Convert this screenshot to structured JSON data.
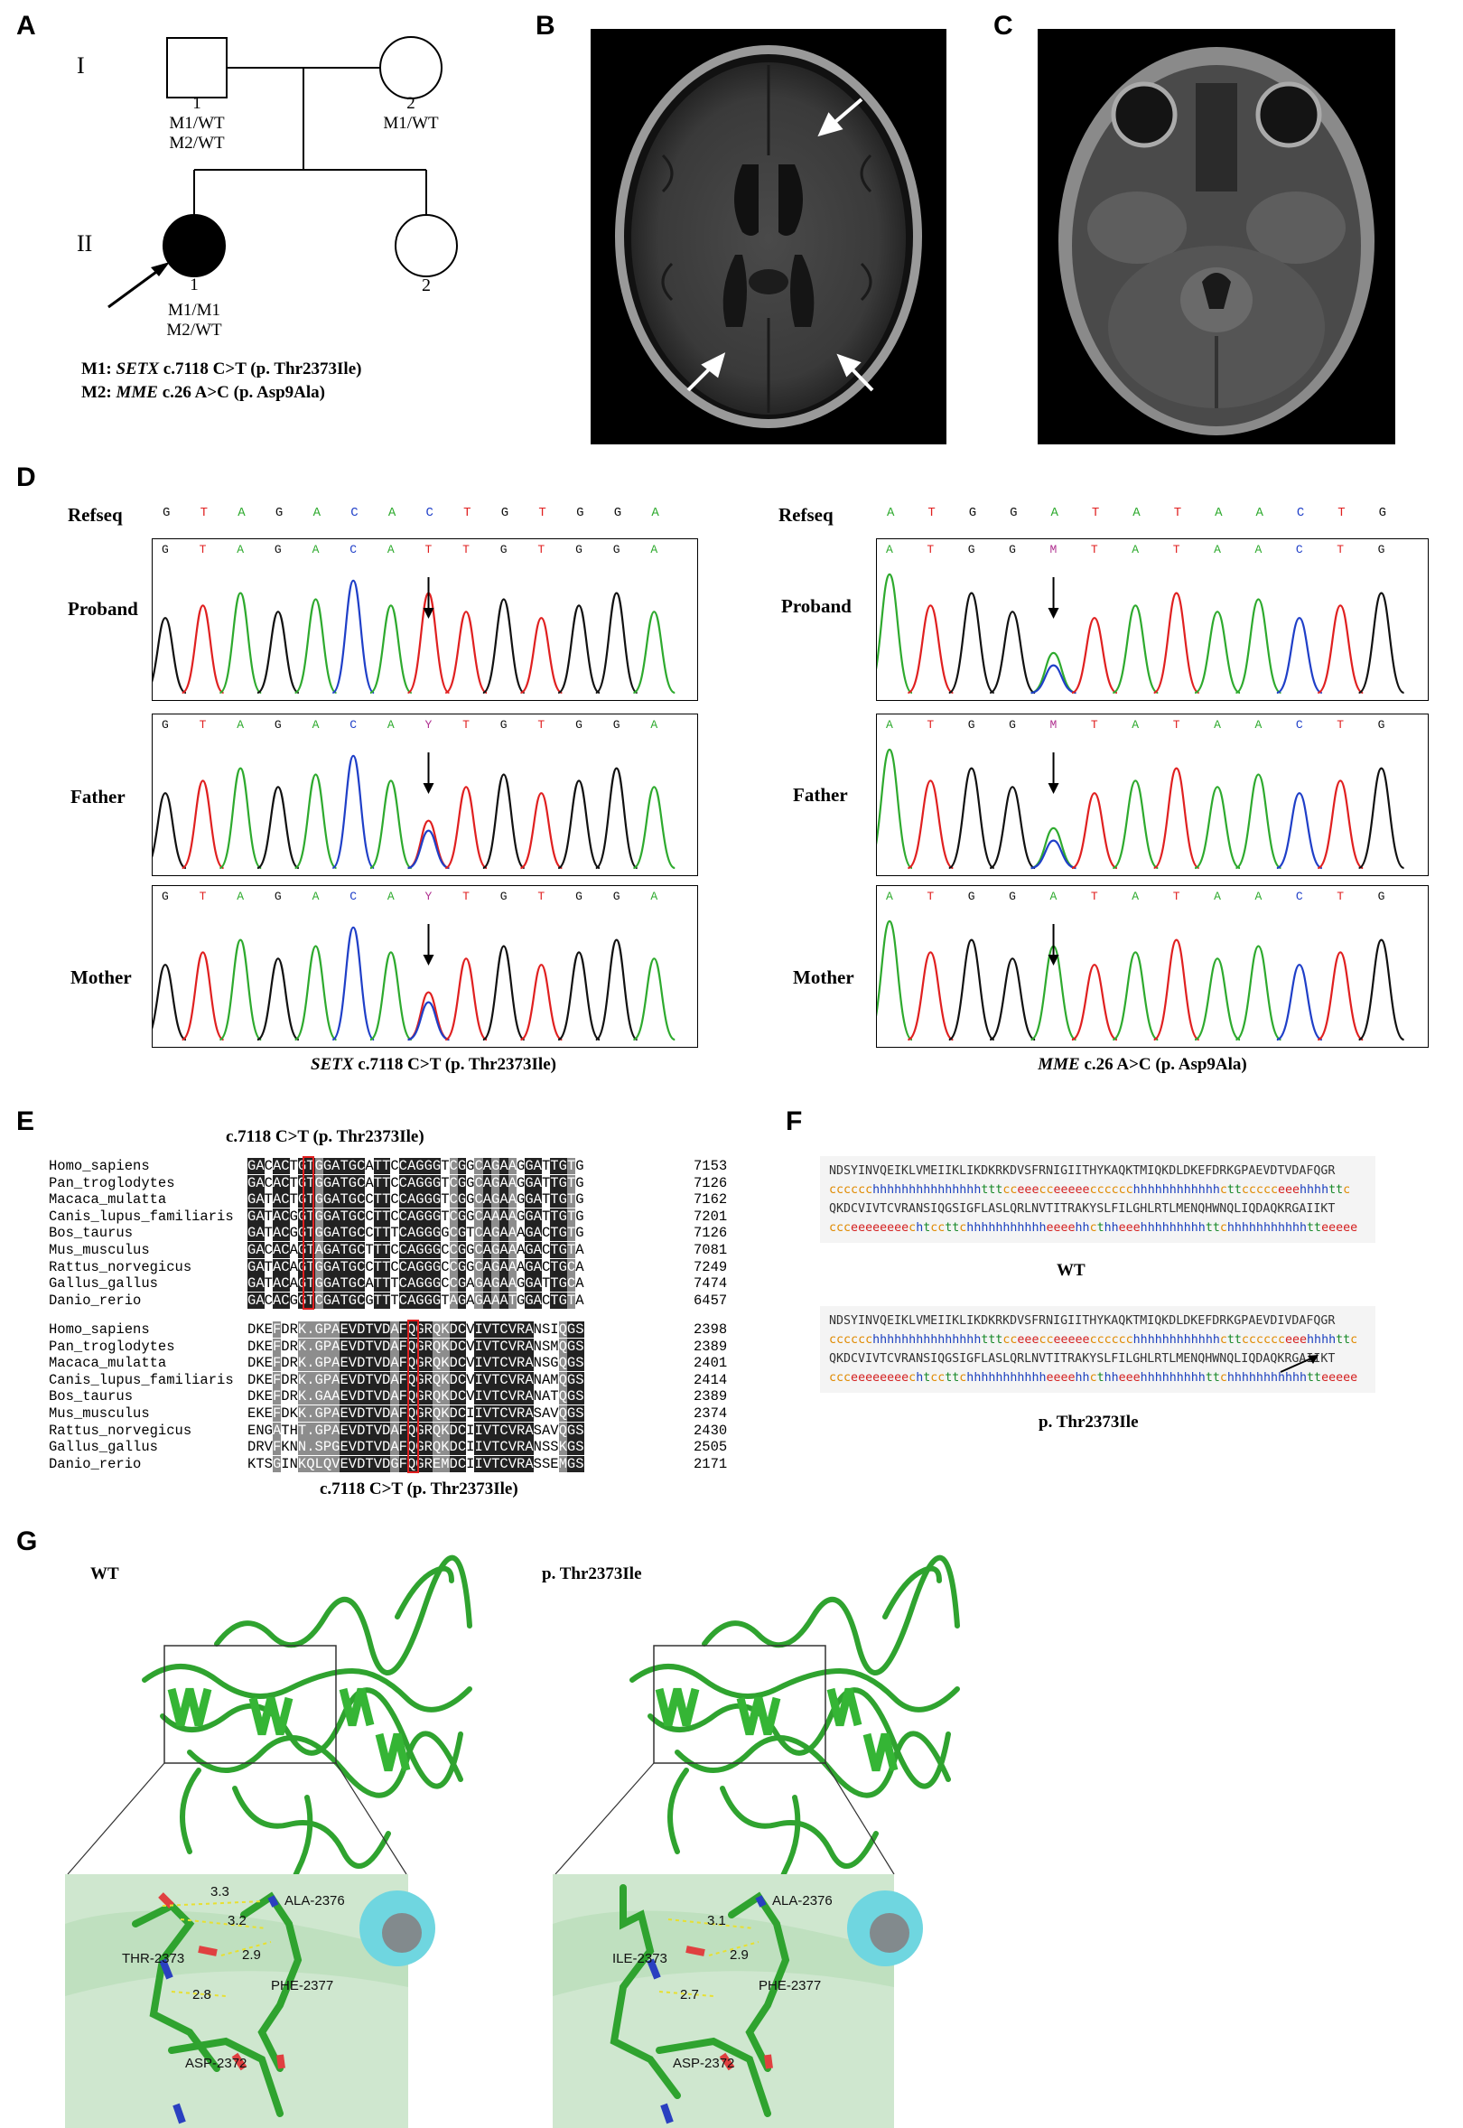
{
  "panels": {
    "A": "A",
    "B": "B",
    "C": "C",
    "D": "D",
    "E": "E",
    "F": "F",
    "G": "G"
  },
  "pedigree": {
    "gen1": "I",
    "gen2": "II",
    "ind_I1": {
      "num": "1",
      "g1": "M1/WT",
      "g2": "M2/WT"
    },
    "ind_I2": {
      "num": "2",
      "g1": "M1/WT"
    },
    "ind_II1": {
      "num": "1",
      "g1": "M1/M1",
      "g2": "M2/WT"
    },
    "ind_II2": {
      "num": "2"
    },
    "legend_m1": {
      "key": "M1:",
      "gene": "SETX",
      "rest": " c.7118 C>T (p. Thr2373Ile)"
    },
    "legend_m2": {
      "key": "M2:",
      "gene": "MME",
      "rest": "  c.26 A>C (p. Asp9Ala)"
    }
  },
  "chromatograms": {
    "row_labels": {
      "ref": "Refseq",
      "proband": "Proband",
      "father": "Father",
      "mother": "Mother"
    },
    "left": {
      "refseq": [
        "G",
        "T",
        "A",
        "G",
        "A",
        "C",
        "A",
        "C",
        "T",
        "G",
        "T",
        "G",
        "G",
        "A"
      ],
      "proband": [
        "G",
        "T",
        "A",
        "G",
        "A",
        "C",
        "A",
        "T",
        "T",
        "G",
        "T",
        "G",
        "G",
        "A"
      ],
      "father": [
        "G",
        "T",
        "A",
        "G",
        "A",
        "C",
        "A",
        "Y",
        "T",
        "G",
        "T",
        "G",
        "G",
        "A"
      ],
      "mother": [
        "G",
        "T",
        "A",
        "G",
        "A",
        "C",
        "A",
        "Y",
        "T",
        "G",
        "T",
        "G",
        "G",
        "A"
      ],
      "caption_gene": "SETX",
      "caption_rest": " c.7118 C>T (p. Thr2373Ile)"
    },
    "right": {
      "refseq": [
        "A",
        "T",
        "G",
        "G",
        "A",
        "T",
        "A",
        "T",
        "A",
        "A",
        "C",
        "T",
        "G"
      ],
      "proband": [
        "A",
        "T",
        "G",
        "G",
        "M",
        "T",
        "A",
        "T",
        "A",
        "A",
        "C",
        "T",
        "G"
      ],
      "father": [
        "A",
        "T",
        "G",
        "G",
        "M",
        "T",
        "A",
        "T",
        "A",
        "A",
        "C",
        "T",
        "G"
      ],
      "mother": [
        "A",
        "T",
        "G",
        "G",
        "A",
        "T",
        "A",
        "T",
        "A",
        "A",
        "C",
        "T",
        "G"
      ],
      "caption_gene": "MME",
      "caption_rest": " c.26 A>C (p. Asp9Ala)"
    },
    "base_colors": {
      "A": "#2eaa2e",
      "T": "#e02020",
      "G": "#111111",
      "C": "#1f3fc8",
      "Y": "#b03090",
      "M": "#b03090"
    }
  },
  "alignment": {
    "title_top": "c.7118 C>T (p. Thr2373Ile)",
    "title_bottom": "c.7118 C>T (p. Thr2373Ile)",
    "species": [
      "Homo_sapiens",
      "Pan_troglodytes",
      "Macaca_mulatta",
      "Canis_lupus_familiaris",
      "Bos_taurus",
      "Mus_musculus",
      "Rattus_norvegicus",
      "Gallus_gallus",
      "Danio_rerio"
    ],
    "nucleotide": [
      {
        "seq": "GACACTGTGGATGCATTCCAGGGTCGGCAGAAGGATTGTG",
        "pos": "7153"
      },
      {
        "seq": "GACACTGTGGATGCATTCCAGGGTCGGCAGAAGGATTGTG",
        "pos": "7126"
      },
      {
        "seq": "GATACTGTGGATGCCTTCCAGGGTCGGCAGAAGGATTGTG",
        "pos": "7162"
      },
      {
        "seq": "GATACGGTGGATGCCTTCCAGGGTCGGCAAAAGGATTGTG",
        "pos": "7201"
      },
      {
        "seq": "GATACGGTGGATGCCTTTCAGGGGCGTCAGAAAGACTGTG",
        "pos": "7126"
      },
      {
        "seq": "GACACAGTAGATGCTTTCCAGGGCCGGCAGAAAGACTGTA",
        "pos": "7081"
      },
      {
        "seq": "GATACAGTGGATGCCTTCCAGGGCCGGCAGAAAGACTGCA",
        "pos": "7249"
      },
      {
        "seq": "GATACAGTGGATGCATTTCAGGGCCGAGAGAAGGATTGCA",
        "pos": "7474"
      },
      {
        "seq": "GACACGGTCGATGCGTTTCAGGGTAGAGAAATGGACTGTA",
        "pos": "6457"
      }
    ],
    "protein": [
      {
        "seq": "DKEFDRK.GPAEVDTVDAFQGRQKDCVIVTCVRANSIQGS",
        "pos": "2398"
      },
      {
        "seq": "DKEFDRK.GPAEVDTVDAFQGRQKDCVIVTCVRANSMQGS",
        "pos": "2389"
      },
      {
        "seq": "DKEFDRK.GPAEVDTVDAFQGRQKDCVIVTCVRANSGQGS",
        "pos": "2401"
      },
      {
        "seq": "DKEFDRK.GPAEVDTVDAFQGRQKDCVIVTCVRANAMQGS",
        "pos": "2414"
      },
      {
        "seq": "DKEFDRK.GAAEVDTVDAFQGRQKDCVIVTCVRANATQGS",
        "pos": "2389"
      },
      {
        "seq": "EKEFDKK.GPAEVDTVDAFQGRQKDCIIVTCVRASAVQGS",
        "pos": "2374"
      },
      {
        "seq": "ENGATHT.GPAEVDTVDAFQGRQKDCIIVTCVRASAVQGS",
        "pos": "2430"
      },
      {
        "seq": "DRVFKNN.SPGEVDTVDAFQGRQKDCIIVTCVRANSSKGS",
        "pos": "2505"
      },
      {
        "seq": "KTSGINKQLQVEVDTVDGFQGREMDCIIVTCVRASSEMGS",
        "pos": "2171"
      }
    ]
  },
  "secondary_structure": {
    "wt": {
      "label": "WT",
      "lines": [
        "NDSYINVQEIKLVMEIIKLIKDKRKDVSFRNIGIITHYKAQKTMIQKDLDKEFDRKGPAEVDTVDAFQGR",
        "cccccchhhhhhhhhhhhhhhtttcceeecceeeeecccccchhhhhhhhhhhhcttccccceeehhhhttc",
        "QKDCVIVTCVRANSIQGSIGFLASLQRLNVTITRAKYSLFILGHLRTLMENQHWNQLIQDAQKRGAIIKT",
        "ccceeeeeeeechtccttchhhhhhhhhhheeeehhcthheeehhhhhhhhhttchhhhhhhhhhhtteeeee"
      ]
    },
    "mut": {
      "label": "p. Thr2373Ile",
      "lines": [
        "NDSYINVQEIKLVMEIIKLIKDKRKDVSFRNIGIITHYKAQKTMIQKDLDKEFDRKGPAEVDIVDAFQGR",
        "cccccchhhhhhhhhhhhhhhtttcceeecceeeeecccccchhhhhhhhhhhhcttcccccceeehhhhttc",
        "QKDCVIVTCVRANSIQGSIGFLASLQRLNVTITRAKYSLFILGHLRTLMENQHWNQLIQDAQKRGAIIKT",
        "ccceeeeeeeechtccttchhhhhhhhhhheeeehhcthheeehhhhhhhhhttchhhhhhhhhhhtteeeee"
      ]
    }
  },
  "structure": {
    "wt_label": "WT",
    "mut_label": "p. Thr2373Ile",
    "wt_residues": {
      "r1": "THR-2373",
      "r2": "ALA-2376",
      "r3": "PHE-2377",
      "r4": "ASP-2372"
    },
    "mut_residues": {
      "r1": "ILE-2373",
      "r2": "ALA-2376",
      "r3": "PHE-2377",
      "r4": "ASP-2372"
    },
    "wt_dist": {
      "d1": "3.3",
      "d2": "3.2",
      "d3": "2.9",
      "d4": "2.8"
    },
    "mut_dist": {
      "d1": "3.1",
      "d2": "2.9",
      "d3": "2.7"
    }
  }
}
